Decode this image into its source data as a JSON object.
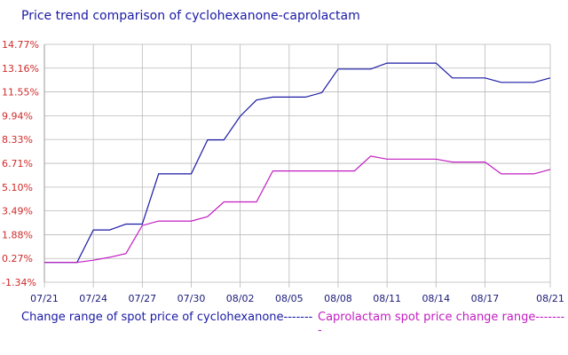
{
  "chart_data": {
    "type": "line",
    "title": "Price trend comparison of cyclohexanone-caprolactam",
    "xlabel": "",
    "ylabel": "",
    "ylim": [
      -1.34,
      14.77
    ],
    "ytick_values": [
      14.77,
      13.16,
      11.55,
      9.94,
      8.33,
      6.71,
      5.1,
      3.49,
      1.88,
      0.27,
      -1.34
    ],
    "ytick_labels": [
      "14.77%",
      "13.16%",
      "11.55%",
      "9.94%",
      "8.33%",
      "6.71%",
      "5.10%",
      "3.49%",
      "1.88%",
      "0.27%",
      "-1.34%"
    ],
    "x": [
      "07/21",
      "07/22",
      "07/23",
      "07/24",
      "07/25",
      "07/26",
      "07/27",
      "07/28",
      "07/29",
      "07/30",
      "07/31",
      "08/01",
      "08/02",
      "08/03",
      "08/04",
      "08/05",
      "08/06",
      "08/07",
      "08/08",
      "08/09",
      "08/10",
      "08/11",
      "08/12",
      "08/13",
      "08/14",
      "08/15",
      "08/16",
      "08/17",
      "08/18",
      "08/19",
      "08/20",
      "08/21"
    ],
    "xtick_labels": [
      "07/21",
      "07/24",
      "07/27",
      "07/30",
      "08/02",
      "08/05",
      "08/08",
      "08/11",
      "08/14",
      "08/17",
      "08/21"
    ],
    "xtick_indices": [
      0,
      3,
      6,
      9,
      12,
      15,
      18,
      21,
      24,
      27,
      31
    ],
    "grid": true,
    "legend": "bottom",
    "series": [
      {
        "name": "Change range of spot price of cyclohexanone-------",
        "color": "#1a1aa6",
        "values": [
          0,
          0,
          0,
          2.2,
          2.2,
          2.6,
          2.6,
          6.0,
          6.0,
          6.0,
          8.3,
          8.3,
          9.9,
          11.0,
          11.2,
          11.2,
          11.2,
          11.5,
          13.1,
          13.1,
          13.1,
          13.5,
          13.5,
          13.5,
          13.5,
          12.5,
          12.5,
          12.5,
          12.2,
          12.2,
          12.2,
          12.5
        ]
      },
      {
        "name": "Caprolactam spot price change range--------",
        "color": "#c21ec2",
        "values": [
          0,
          0,
          0,
          0.15,
          0.35,
          0.6,
          2.5,
          2.8,
          2.8,
          2.8,
          3.1,
          4.1,
          4.1,
          4.1,
          6.2,
          6.2,
          6.2,
          6.2,
          6.2,
          6.2,
          7.2,
          7.0,
          7.0,
          7.0,
          7.0,
          6.8,
          6.8,
          6.8,
          6.0,
          6.0,
          6.0,
          6.3
        ]
      }
    ]
  }
}
